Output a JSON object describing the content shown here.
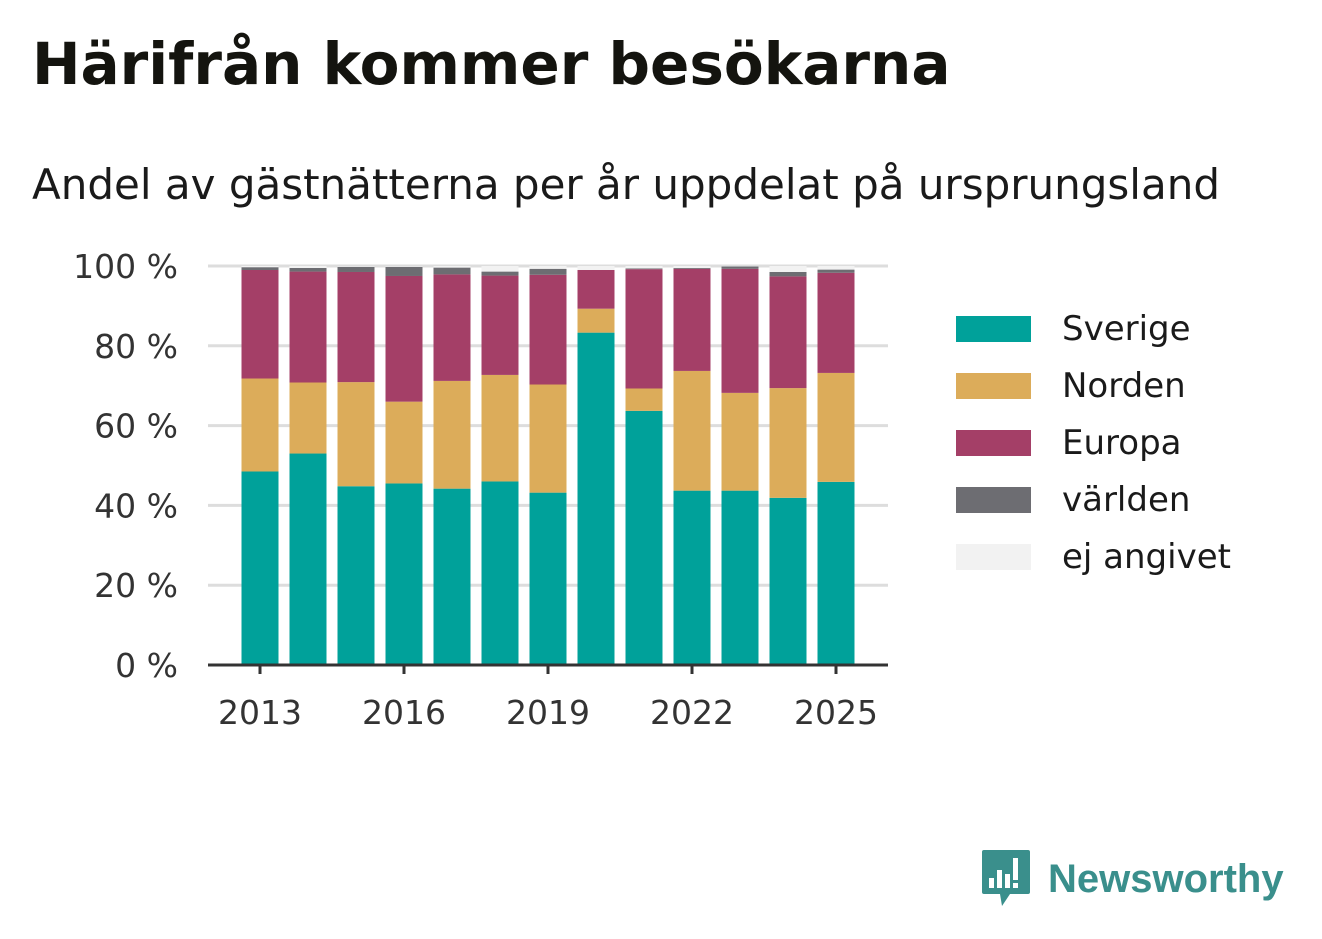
{
  "title": "Härifrån kommer besökarna",
  "subtitle": "Andel av gästnätterna per år uppdelat på ursprungsland",
  "logo_text": "Newsworthy",
  "colors": {
    "Sverige": "#00a19a",
    "Norden": "#dcac5a",
    "Europa": "#a43f67",
    "världen": "#6d6d72",
    "ej angivet": "#f2f2f2",
    "grid": "#dddddd",
    "axis": "#333333",
    "logo": "#3a8f8c"
  },
  "chart_data": {
    "type": "bar",
    "stacked": true,
    "x": [
      2013,
      2014,
      2015,
      2016,
      2017,
      2018,
      2019,
      2020,
      2021,
      2022,
      2023,
      2024,
      2025
    ],
    "series": [
      {
        "name": "Sverige",
        "values": [
          48.5,
          53,
          44.8,
          45.5,
          44.2,
          46,
          43.2,
          83.3,
          63.7,
          43.7,
          43.7,
          41.9,
          45.9
        ]
      },
      {
        "name": "Norden",
        "values": [
          23.3,
          17.8,
          26.1,
          20.5,
          27,
          26.7,
          27.1,
          6,
          5.6,
          30,
          24.5,
          27.5,
          27.3
        ]
      },
      {
        "name": "Europa",
        "values": [
          27.2,
          27.8,
          27.6,
          31.5,
          26.7,
          24.9,
          27.5,
          9.7,
          29.9,
          25.6,
          31.1,
          28,
          25.1
        ]
      },
      {
        "name": "världen",
        "values": [
          0.7,
          0.9,
          1.3,
          2.3,
          1.7,
          1,
          1.5,
          0,
          0.2,
          0.2,
          0.6,
          1.1,
          0.8
        ]
      },
      {
        "name": "ej angivet",
        "values": [
          0.3,
          0.5,
          0.2,
          0.2,
          0.4,
          1.4,
          0.7,
          1,
          0.6,
          0.5,
          0.1,
          1.5,
          0.9
        ]
      }
    ],
    "xticks": [
      "2013",
      "2016",
      "2019",
      "2022",
      "2025"
    ],
    "yticks": [
      "0 %",
      "20 %",
      "40 %",
      "60 %",
      "80 %",
      "100 %"
    ],
    "ylim": [
      0,
      100
    ],
    "grid": true,
    "legend_position": "right"
  }
}
